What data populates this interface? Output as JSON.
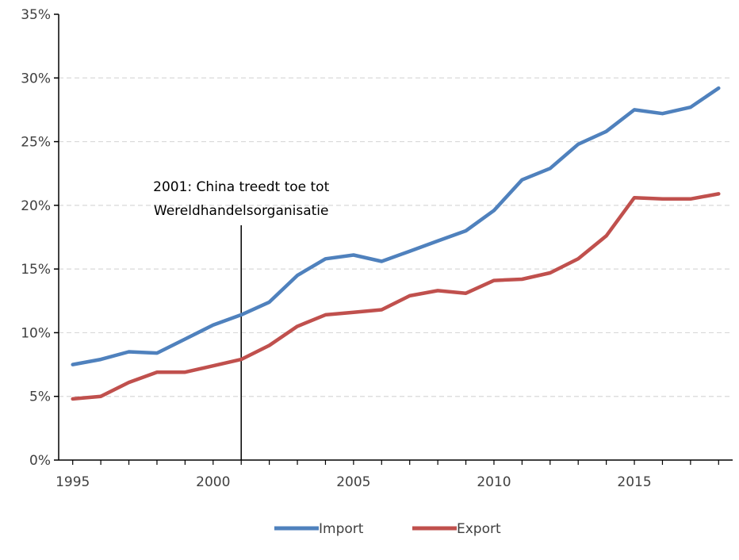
{
  "chart_data": {
    "type": "line",
    "x": [
      1995,
      1996,
      1997,
      1998,
      1999,
      2000,
      2001,
      2002,
      2003,
      2004,
      2005,
      2006,
      2007,
      2008,
      2009,
      2010,
      2011,
      2012,
      2013,
      2014,
      2015,
      2016,
      2017,
      2018
    ],
    "series": [
      {
        "name": "Import",
        "color": "#4f81bd",
        "values": [
          7.5,
          7.9,
          8.5,
          8.4,
          9.5,
          10.6,
          11.4,
          12.4,
          14.5,
          15.8,
          16.1,
          15.6,
          16.4,
          17.2,
          18.0,
          19.6,
          22.0,
          22.9,
          24.8,
          25.8,
          27.5,
          27.2,
          27.7,
          29.2
        ]
      },
      {
        "name": "Export",
        "color": "#c0504d",
        "values": [
          4.8,
          5.0,
          6.1,
          6.9,
          6.9,
          7.4,
          7.9,
          9.0,
          10.5,
          11.4,
          11.6,
          11.8,
          12.9,
          13.3,
          13.1,
          14.1,
          14.2,
          14.7,
          15.8,
          17.6,
          20.6,
          20.5,
          20.5,
          20.9
        ]
      }
    ],
    "x_ticks": [
      {
        "value": 1995,
        "label": "1995"
      },
      {
        "value": 2000,
        "label": "2000"
      },
      {
        "value": 2005,
        "label": "2005"
      },
      {
        "value": 2010,
        "label": "2010"
      },
      {
        "value": 2015,
        "label": "2015"
      }
    ],
    "y_ticks": [
      {
        "value": 0,
        "label": "0%"
      },
      {
        "value": 5,
        "label": "5%"
      },
      {
        "value": 10,
        "label": "10%"
      },
      {
        "value": 15,
        "label": "15%"
      },
      {
        "value": 20,
        "label": "20%"
      },
      {
        "value": 25,
        "label": "25%"
      },
      {
        "value": 30,
        "label": "30%"
      },
      {
        "value": 35,
        "label": "35%"
      }
    ],
    "ylim": [
      0,
      35
    ],
    "xlim": [
      1994.5,
      2018.5
    ],
    "title": "",
    "xlabel": "",
    "ylabel": "",
    "grid": "horizontal dashed",
    "legend_position": "bottom-center",
    "annotation": {
      "x": 2001,
      "lines": [
        "2001: China treedt toe tot",
        "Wereldhandelsorganisatie"
      ]
    }
  }
}
